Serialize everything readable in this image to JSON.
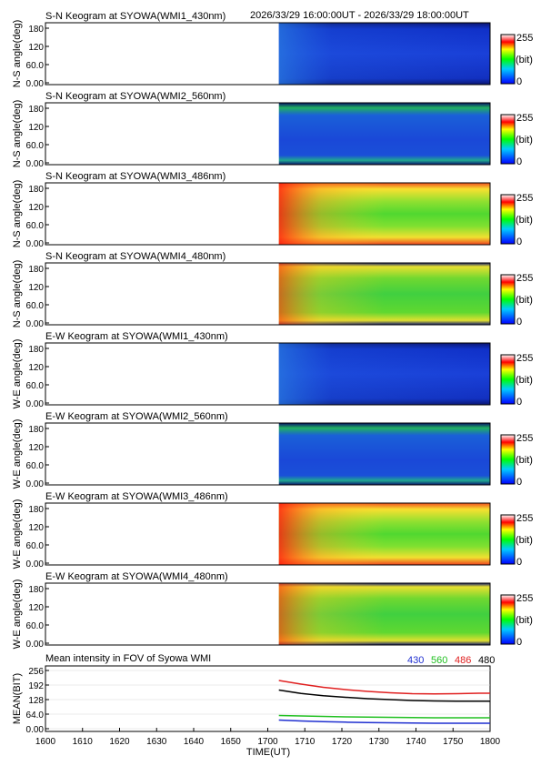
{
  "header": {
    "time_range": "2026/33/29 16:00:00UT - 2026/33/29 18:00:00UT"
  },
  "keograms": [
    {
      "title": "S-N Keogram at SYOWA(WMI1_430nm)",
      "ylabel": "N-S angle(deg)",
      "style": "blue"
    },
    {
      "title": "S-N Keogram at SYOWA(WMI2_560nm)",
      "ylabel": "N-S angle(deg)",
      "style": "blue-green"
    },
    {
      "title": "S-N Keogram at SYOWA(WMI3_486nm)",
      "ylabel": "N-S angle(deg)",
      "style": "bright"
    },
    {
      "title": "S-N Keogram at SYOWA(WMI4_480nm)",
      "ylabel": "N-S angle(deg)",
      "style": "mid"
    },
    {
      "title": "E-W Keogram at SYOWA(WMI1_430nm)",
      "ylabel": "W-E angle(deg)",
      "style": "blue"
    },
    {
      "title": "E-W Keogram at SYOWA(WMI2_560nm)",
      "ylabel": "W-E angle(deg)",
      "style": "blue-green"
    },
    {
      "title": "E-W Keogram at SYOWA(WMI3_486nm)",
      "ylabel": "W-E angle(deg)",
      "style": "bright"
    },
    {
      "title": "E-W Keogram at SYOWA(WMI4_480nm)",
      "ylabel": "W-E angle(deg)",
      "style": "mid"
    }
  ],
  "colorbar": {
    "max_label": "255",
    "unit_label": "(bit)",
    "min_label": "0"
  },
  "chart_data": {
    "type": "line",
    "title": "Mean intensity in FOV of Syowa WMI",
    "xlabel": "TIME(UT)",
    "ylabel": "MEAN(BIT)",
    "xlim": [
      1600,
      1800
    ],
    "ylim": [
      0,
      256
    ],
    "xticks": [
      "1600",
      "1610",
      "1620",
      "1630",
      "1640",
      "1650",
      "1700",
      "1710",
      "1720",
      "1730",
      "1740",
      "1750",
      "1800"
    ],
    "yticks": [
      "0.00",
      "64.0",
      "128",
      "192",
      "256"
    ],
    "keogram_yticks": [
      "0.00",
      "60.0",
      "120",
      "180"
    ],
    "keogram_ylim": [
      0,
      180
    ],
    "data_start": 1705,
    "series": [
      {
        "name": "430",
        "color": "#1f2fd0",
        "x": [
          1705,
          1715,
          1725,
          1735,
          1745,
          1755,
          1765,
          1775,
          1785,
          1795,
          1800
        ],
        "y": [
          38,
          34,
          31,
          29,
          27,
          26,
          25,
          24,
          24,
          24,
          24
        ]
      },
      {
        "name": "560",
        "color": "#22c022",
        "x": [
          1705,
          1715,
          1725,
          1735,
          1745,
          1755,
          1765,
          1775,
          1785,
          1795,
          1800
        ],
        "y": [
          58,
          56,
          54,
          52,
          51,
          50,
          49,
          48,
          48,
          48,
          48
        ]
      },
      {
        "name": "486",
        "color": "#e02020",
        "x": [
          1705,
          1715,
          1725,
          1735,
          1745,
          1755,
          1765,
          1775,
          1785,
          1795,
          1800
        ],
        "y": [
          212,
          196,
          182,
          172,
          164,
          158,
          154,
          153,
          154,
          156,
          156
        ]
      },
      {
        "name": "480",
        "color": "#000000",
        "x": [
          1705,
          1715,
          1725,
          1735,
          1745,
          1755,
          1765,
          1775,
          1785,
          1795,
          1800
        ],
        "y": [
          170,
          155,
          145,
          138,
          132,
          128,
          124,
          122,
          121,
          121,
          121
        ]
      }
    ]
  }
}
